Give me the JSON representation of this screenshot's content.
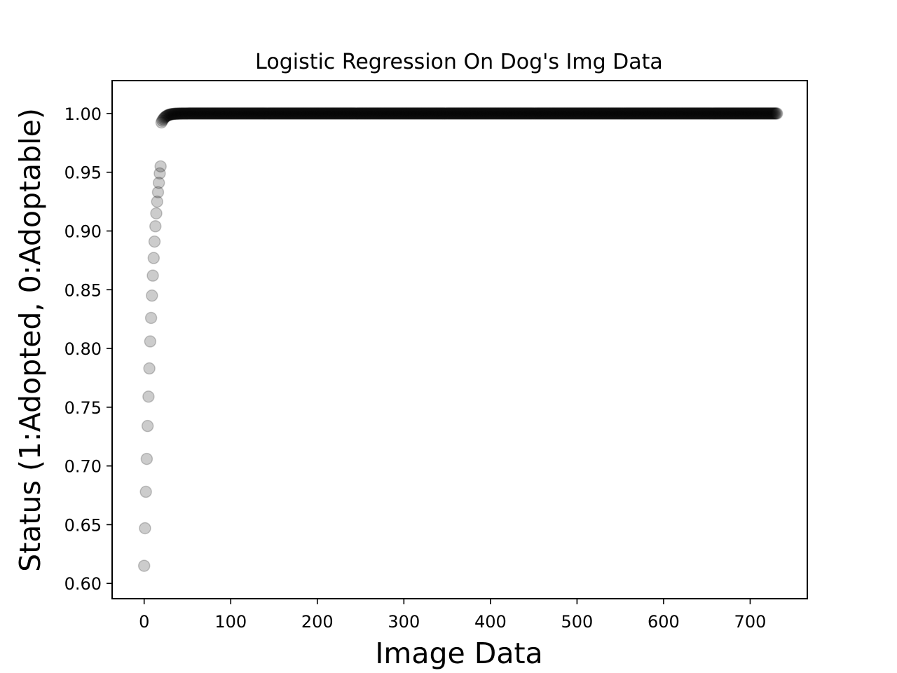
{
  "chart_data": {
    "type": "scatter",
    "title": "Logistic Regression On Dog's Img Data",
    "xlabel": "Image Data",
    "ylabel": "Status (1:Adopted, 0:Adoptable)",
    "xlim": [
      -37,
      766
    ],
    "ylim": [
      0.587,
      1.028
    ],
    "xticks": [
      0,
      100,
      200,
      300,
      400,
      500,
      600,
      700
    ],
    "xtick_labels": [
      "0",
      "100",
      "200",
      "300",
      "400",
      "500",
      "600",
      "700"
    ],
    "yticks": [
      0.6,
      0.65,
      0.7,
      0.75,
      0.8,
      0.85,
      0.9,
      0.95,
      1.0
    ],
    "ytick_labels": [
      "0.60",
      "0.65",
      "0.70",
      "0.75",
      "0.80",
      "0.85",
      "0.90",
      "0.95",
      "1.00"
    ],
    "grid": false,
    "legend": "none",
    "marker_color": "#000000",
    "marker_alpha": 0.2,
    "series": [
      {
        "x_start": 0,
        "x_end": 731,
        "x_step": 1,
        "logistic_intercept": 0.47,
        "logistic_slope": 0.22,
        "values_first_points": [
          0.615,
          0.647,
          0.678,
          0.706,
          0.734,
          0.759,
          0.783,
          0.806,
          0.826,
          0.845,
          0.862,
          0.877,
          0.891,
          0.904,
          0.915,
          0.925,
          0.933,
          0.941,
          0.949,
          0.955
        ],
        "plateau_value": 1.0
      }
    ]
  }
}
